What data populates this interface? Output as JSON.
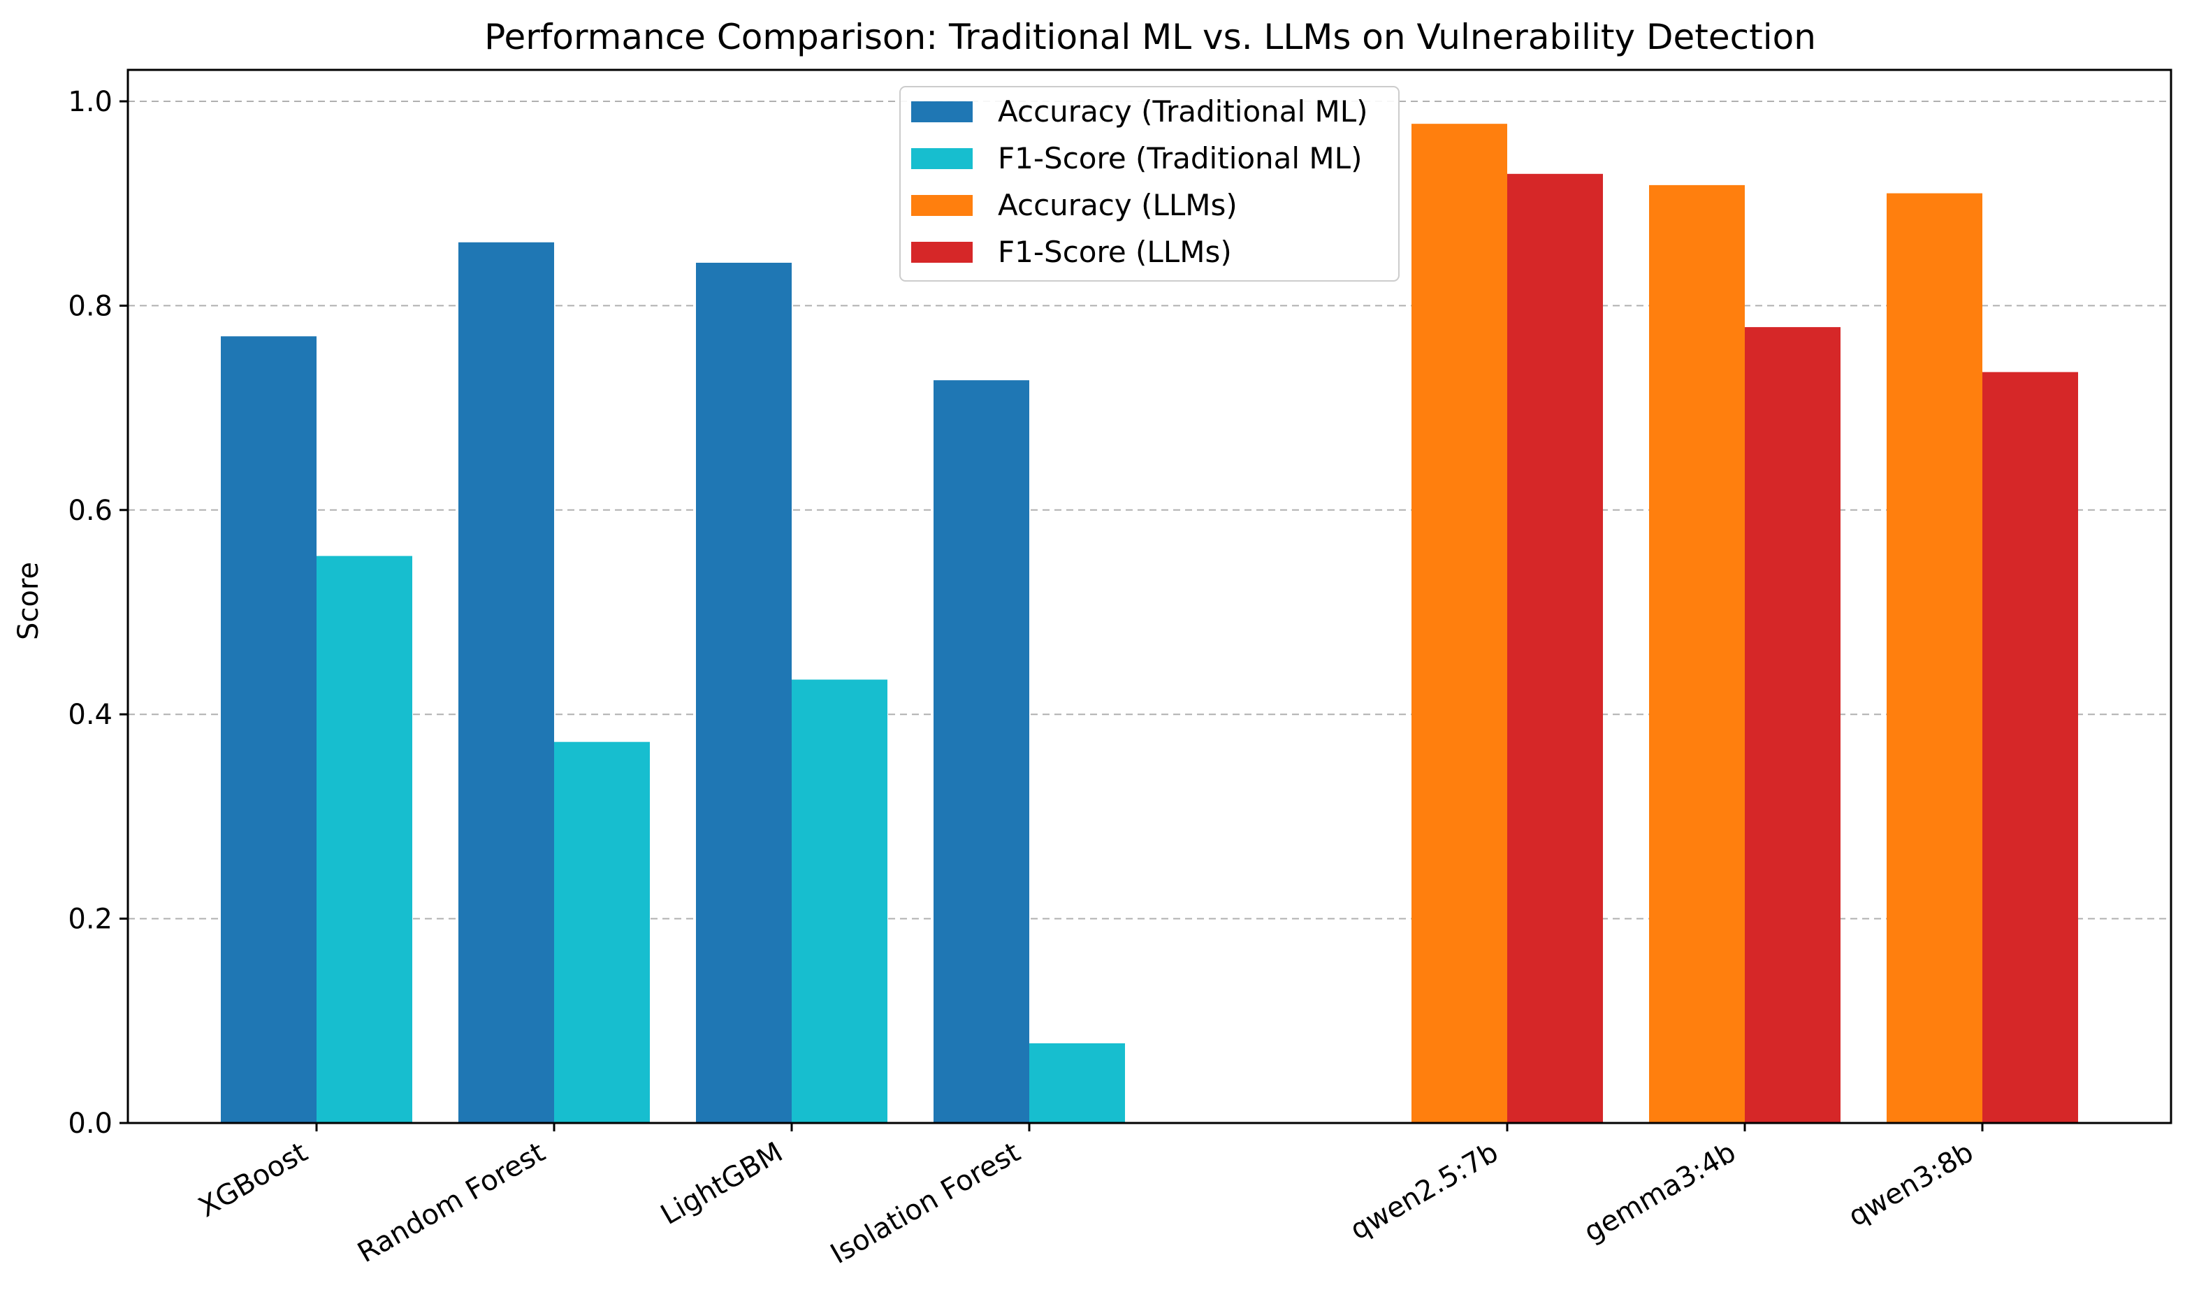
{
  "chart_data": {
    "type": "bar",
    "title": "Performance Comparison: Traditional ML vs. LLMs on Vulnerability Detection",
    "xlabel": "",
    "ylabel": "Score",
    "ylim": [
      0,
      1.03
    ],
    "yticks": [
      "0.0",
      "0.2",
      "0.4",
      "0.6",
      "0.8",
      "1.0"
    ],
    "grid": "y-dashed",
    "legend_position": "top-center",
    "groups": [
      {
        "name": "Traditional ML",
        "categories": [
          "XGBoost",
          "Random Forest",
          "LightGBM",
          "Isolation Forest"
        ],
        "series": [
          {
            "name": "Accuracy (Traditional ML)",
            "color": "#1f77b4",
            "values": [
              0.77,
              0.862,
              0.842,
              0.727
            ]
          },
          {
            "name": "F1-Score (Traditional ML)",
            "color": "#17becf",
            "values": [
              0.555,
              0.373,
              0.434,
              0.078
            ]
          }
        ]
      },
      {
        "name": "LLMs",
        "categories": [
          "qwen2.5:7b",
          "gemma3:4b",
          "qwen3:8b"
        ],
        "series": [
          {
            "name": "Accuracy (LLMs)",
            "color": "#ff7f0e",
            "values": [
              0.978,
              0.918,
              0.91
            ]
          },
          {
            "name": "F1-Score (LLMs)",
            "color": "#d62728",
            "values": [
              0.929,
              0.779,
              0.735
            ]
          }
        ]
      }
    ],
    "legend": [
      {
        "label": "Accuracy (Traditional ML)",
        "color": "#1f77b4"
      },
      {
        "label": "F1-Score (Traditional ML)",
        "color": "#17becf"
      },
      {
        "label": "Accuracy (LLMs)",
        "color": "#ff7f0e"
      },
      {
        "label": "F1-Score (LLMs)",
        "color": "#d62728"
      }
    ]
  }
}
